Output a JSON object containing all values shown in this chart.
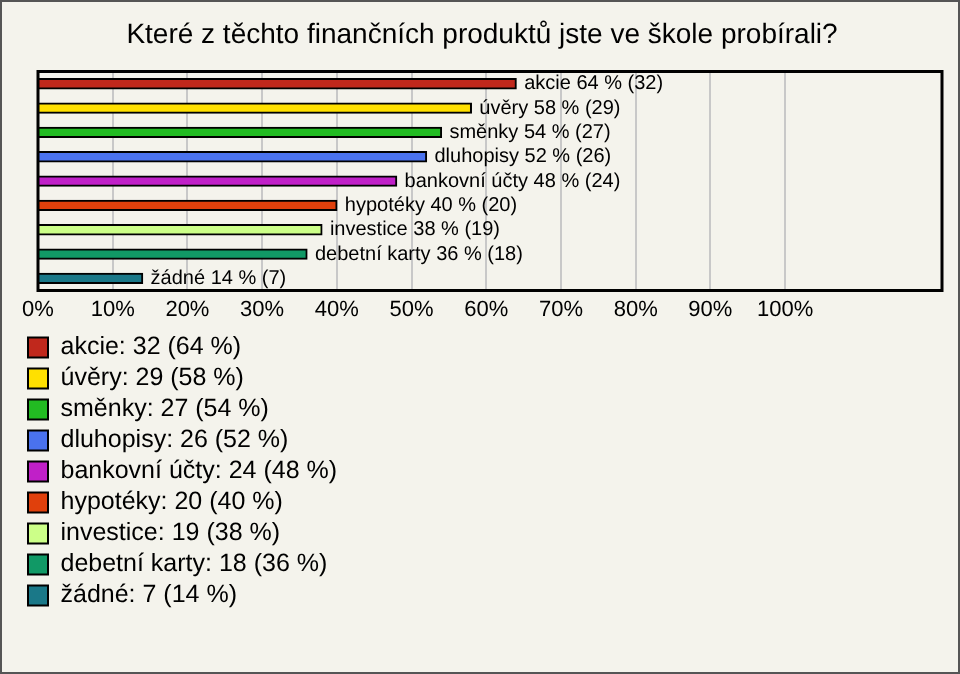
{
  "chart_data": {
    "type": "bar",
    "orientation": "horizontal",
    "stacked": true,
    "title": "Které z těchto finančních produktů jste ve škole probírali?",
    "categories": [
      null,
      null,
      null,
      null,
      null,
      null,
      null,
      null,
      null
    ],
    "series": [
      {
        "name": "akcie: 32 (64 %)",
        "color": "#c0281c",
        "values": [
          64,
          null,
          null,
          null,
          null,
          null,
          null,
          null,
          null
        ],
        "value_labels": [
          "akcie 64 % (32)",
          null,
          null,
          null,
          null,
          null,
          null,
          null,
          null
        ]
      },
      {
        "name": "úvěry: 29 (58 %)",
        "color": "#ffe000",
        "values": [
          null,
          58,
          null,
          null,
          null,
          null,
          null,
          null,
          null
        ],
        "value_labels": [
          null,
          "úvěry 58 % (29)",
          null,
          null,
          null,
          null,
          null,
          null,
          null
        ]
      },
      {
        "name": "směnky: 27 (54 %)",
        "color": "#22bb22",
        "values": [
          null,
          null,
          54,
          null,
          null,
          null,
          null,
          null,
          null
        ],
        "value_labels": [
          null,
          null,
          "směnky 54 % (27)",
          null,
          null,
          null,
          null,
          null,
          null
        ]
      },
      {
        "name": "dluhopisy: 26 (52 %)",
        "color": "#4a72ee",
        "values": [
          null,
          null,
          null,
          52,
          null,
          null,
          null,
          null,
          null
        ],
        "value_labels": [
          null,
          null,
          null,
          "dluhopisy 52 % (26)",
          null,
          null,
          null,
          null,
          null
        ]
      },
      {
        "name": "bankovní účty: 24 (48 %)",
        "color": "#c020c8",
        "values": [
          null,
          null,
          null,
          null,
          48,
          null,
          null,
          null,
          null
        ],
        "value_labels": [
          null,
          null,
          null,
          null,
          "bankovní účty 48 % (24)",
          null,
          null,
          null,
          null
        ]
      },
      {
        "name": "hypotéky: 20 (40 %)",
        "color": "#e0400c",
        "values": [
          null,
          null,
          null,
          null,
          null,
          40,
          null,
          null,
          null
        ],
        "value_labels": [
          null,
          null,
          null,
          null,
          null,
          "hypotéky 40 % (20)",
          null,
          null,
          null
        ]
      },
      {
        "name": "investice: 19 (38 %)",
        "color": "#ccff88",
        "values": [
          null,
          null,
          null,
          null,
          null,
          null,
          38,
          null,
          null
        ],
        "value_labels": [
          null,
          null,
          null,
          null,
          null,
          null,
          "investice 38 % (19)",
          null,
          null
        ]
      },
      {
        "name": "debetní karty: 18 (36 %)",
        "color": "#119966",
        "values": [
          null,
          null,
          null,
          null,
          null,
          null,
          null,
          36,
          null
        ],
        "value_labels": [
          null,
          null,
          null,
          null,
          null,
          null,
          null,
          "debetní karty 36 % (18)",
          null
        ]
      },
      {
        "name": "žádné: 7 (14 %)",
        "color": "#1a7888",
        "values": [
          null,
          null,
          null,
          null,
          null,
          null,
          null,
          null,
          14
        ],
        "value_labels": [
          null,
          null,
          null,
          null,
          null,
          null,
          null,
          null,
          "žádné 14 % (7)"
        ]
      }
    ],
    "xlim": [
      0,
      121
    ],
    "xticks": [
      {
        "value": 0,
        "label": "0%"
      },
      {
        "value": 10,
        "label": "10%"
      },
      {
        "value": 20,
        "label": "20%"
      },
      {
        "value": 30,
        "label": "30%"
      },
      {
        "value": 40,
        "label": "40%"
      },
      {
        "value": 50,
        "label": "50%"
      },
      {
        "value": 60,
        "label": "60%"
      },
      {
        "value": 70,
        "label": "70%"
      },
      {
        "value": 80,
        "label": "80%"
      },
      {
        "value": 90,
        "label": "90%"
      },
      {
        "value": 100,
        "label": "100%"
      }
    ],
    "grid": "x",
    "tick_labels": "x",
    "legend": "bottom"
  }
}
